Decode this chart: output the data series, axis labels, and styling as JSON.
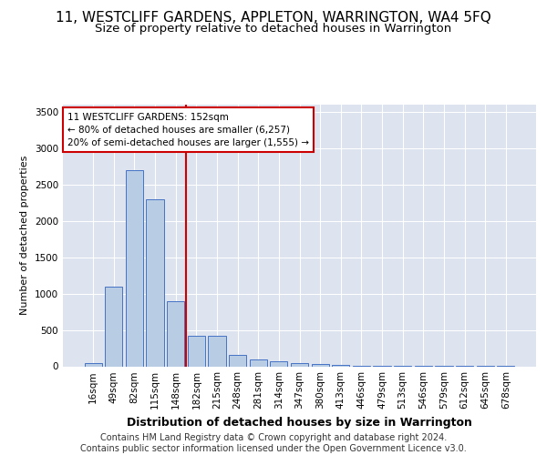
{
  "title": "11, WESTCLIFF GARDENS, APPLETON, WARRINGTON, WA4 5FQ",
  "subtitle": "Size of property relative to detached houses in Warrington",
  "xlabel": "Distribution of detached houses by size in Warrington",
  "ylabel": "Number of detached properties",
  "categories": [
    "16sqm",
    "49sqm",
    "82sqm",
    "115sqm",
    "148sqm",
    "182sqm",
    "215sqm",
    "248sqm",
    "281sqm",
    "314sqm",
    "347sqm",
    "380sqm",
    "413sqm",
    "446sqm",
    "479sqm",
    "513sqm",
    "546sqm",
    "579sqm",
    "612sqm",
    "645sqm",
    "678sqm"
  ],
  "values": [
    50,
    1100,
    2700,
    2300,
    900,
    420,
    420,
    160,
    100,
    70,
    50,
    30,
    15,
    8,
    5,
    3,
    2,
    2,
    1,
    1,
    1
  ],
  "bar_color": "#b8cce4",
  "bar_edge_color": "#4472c4",
  "vline_color": "#cc0000",
  "vline_x": 4.5,
  "annotation_text": "11 WESTCLIFF GARDENS: 152sqm\n← 80% of detached houses are smaller (6,257)\n20% of semi-detached houses are larger (1,555) →",
  "annotation_box_facecolor": "#ffffff",
  "annotation_box_edgecolor": "#cc0000",
  "ylim": [
    0,
    3600
  ],
  "yticks": [
    0,
    500,
    1000,
    1500,
    2000,
    2500,
    3000,
    3500
  ],
  "background_color": "#dde3ef",
  "grid_color": "#ffffff",
  "title_fontsize": 11,
  "subtitle_fontsize": 9.5,
  "ylabel_fontsize": 8,
  "xlabel_fontsize": 9,
  "tick_fontsize": 7.5,
  "annot_fontsize": 7.5,
  "footer_text": "Contains HM Land Registry data © Crown copyright and database right 2024.\nContains public sector information licensed under the Open Government Licence v3.0.",
  "footer_fontsize": 7
}
